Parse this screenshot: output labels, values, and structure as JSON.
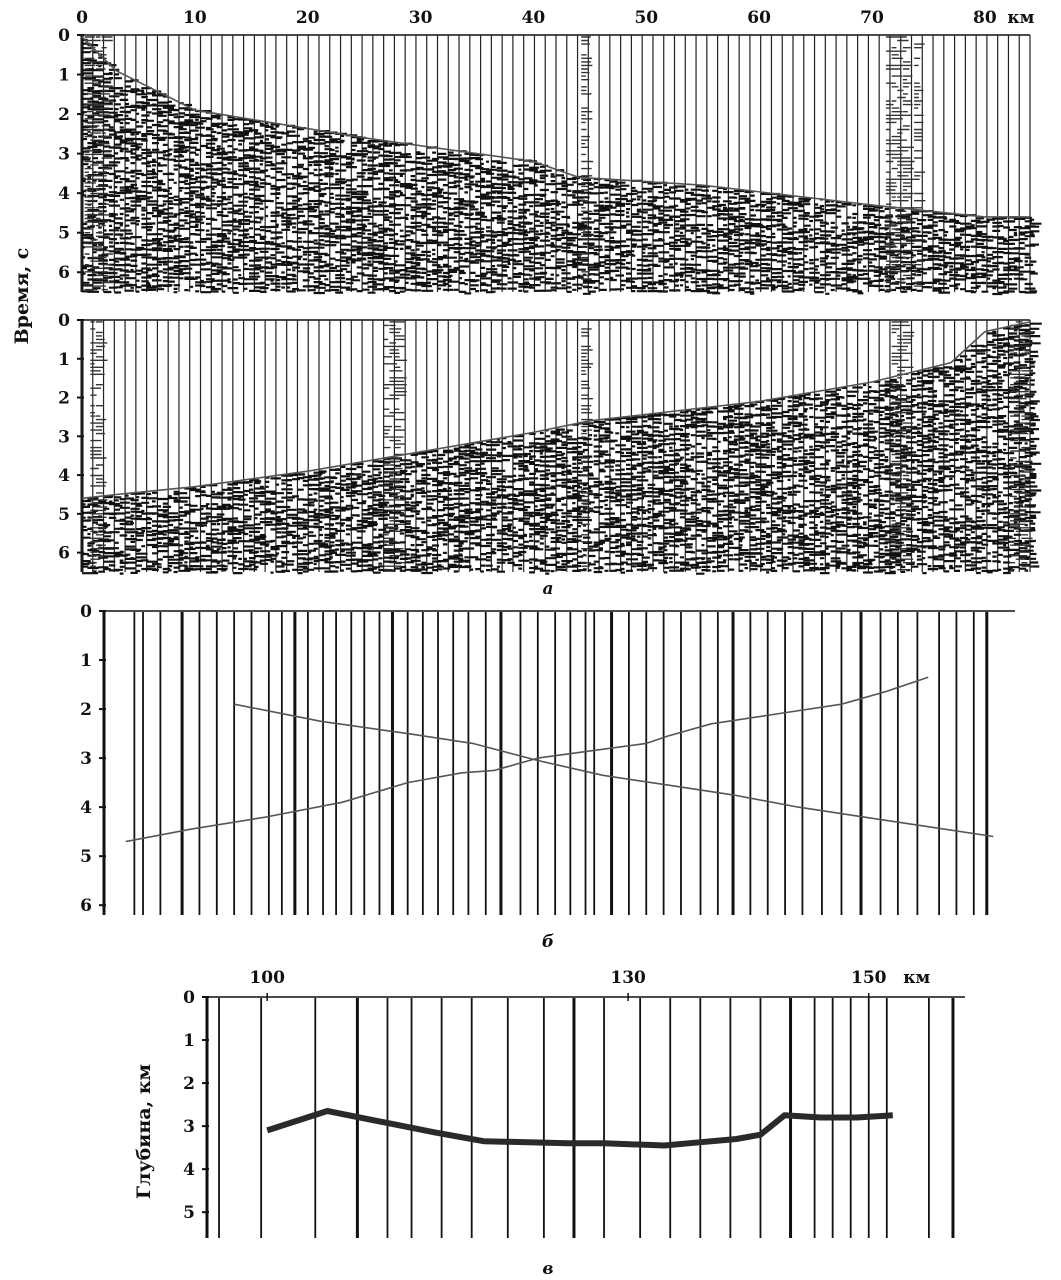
{
  "chart_data": [
    {
      "id": "a-top",
      "type": "seismic-record",
      "caption": "",
      "x_ticks": [
        "0",
        "10",
        "20",
        "30",
        "40",
        "50",
        "60",
        "70",
        "80"
      ],
      "x_unit": "км",
      "xlim": [
        0,
        84
      ],
      "y_ticks": [
        "0",
        "1",
        "2",
        "3",
        "4",
        "5",
        "6"
      ],
      "ylim": [
        0,
        6.5
      ],
      "y_reversed": true,
      "first_arrival": {
        "x": [
          0,
          3,
          10,
          25,
          40,
          44,
          55,
          70,
          80,
          84
        ],
        "y": [
          0.05,
          0.9,
          1.9,
          2.6,
          3.2,
          3.6,
          3.8,
          4.3,
          4.6,
          4.6
        ]
      },
      "noisy_traces": [
        0.5,
        1,
        1.5,
        2,
        44.5,
        71.5,
        72,
        72.5,
        73,
        74
      ],
      "color": "#111111"
    },
    {
      "id": "a-bottom",
      "type": "seismic-record",
      "caption": "а",
      "ylabel": "Время, с",
      "y_ticks": [
        "0",
        "1",
        "2",
        "3",
        "4",
        "5",
        "6"
      ],
      "xlim": [
        0,
        84
      ],
      "ylim": [
        0,
        6.5
      ],
      "y_reversed": true,
      "first_arrival": {
        "x": [
          0,
          3,
          10,
          20,
          30,
          40,
          45,
          60,
          70,
          77,
          80,
          84
        ],
        "y": [
          4.6,
          4.5,
          4.3,
          3.9,
          3.4,
          2.9,
          2.6,
          2.1,
          1.6,
          1.1,
          0.3,
          0.05
        ]
      },
      "noisy_traces": [
        1,
        1.5,
        27,
        27.5,
        28,
        44.5,
        72,
        72.5,
        73,
        82.5,
        83,
        83.5
      ],
      "color": "#111111"
    },
    {
      "id": "b",
      "type": "line",
      "caption": "б",
      "y_ticks": [
        "0",
        "1",
        "2",
        "3",
        "4",
        "5",
        "6"
      ],
      "ylim": [
        0,
        6.2
      ],
      "y_reversed": true,
      "xlim": [
        0,
        84
      ],
      "series": [
        {
          "x": [
            2,
            8,
            15,
            22,
            28,
            33,
            36,
            40,
            45,
            50,
            52,
            56,
            62,
            68,
            72,
            76
          ],
          "y": [
            4.7,
            4.45,
            4.2,
            3.9,
            3.5,
            3.3,
            3.25,
            3.0,
            2.85,
            2.7,
            2.55,
            2.3,
            2.1,
            1.9,
            1.65,
            1.35
          ]
        },
        {
          "x": [
            12,
            20,
            28,
            34,
            40,
            46,
            52,
            58,
            64,
            70,
            76,
            82
          ],
          "y": [
            1.9,
            2.25,
            2.5,
            2.7,
            3.05,
            3.35,
            3.55,
            3.75,
            4.0,
            4.2,
            4.4,
            4.6
          ]
        }
      ],
      "receiver_lines": [
        2.8,
        3.6,
        5.2,
        7.2,
        8.8,
        10.4,
        12,
        13.6,
        15.2,
        16.4,
        17.6,
        18.8,
        20.2,
        21.4,
        22.8,
        24,
        25.4,
        26.6,
        28,
        29.4,
        30.8,
        32.2,
        33.6,
        35.2,
        36.6,
        38.4,
        40,
        41.6,
        43,
        44.4,
        45.2,
        46.8,
        48.4,
        50,
        51.6,
        53.2,
        55,
        56.6,
        58,
        59.6,
        61.2,
        62.8,
        64.4,
        66.2,
        68,
        69.8,
        71.6,
        73.2,
        75,
        77,
        78.6,
        80.2,
        81.4
      ],
      "color": "#111111"
    },
    {
      "id": "v",
      "type": "line",
      "caption": "в",
      "ylabel": "Глубина, км",
      "x_ticks": [
        {
          "v": 100,
          "t": "100"
        },
        {
          "v": 130,
          "t": "130"
        },
        {
          "v": 150,
          "t": "150"
        }
      ],
      "x_unit": "км",
      "xlim": [
        95,
        158
      ],
      "y_ticks": [
        "0",
        "1",
        "2",
        "3",
        "4",
        "5"
      ],
      "ylim": [
        0,
        5.6
      ],
      "y_reversed": true,
      "series": [
        {
          "x": [
            100,
            105,
            114,
            118,
            125,
            128,
            133,
            135,
            139,
            141,
            143,
            146,
            149,
            152
          ],
          "y": [
            3.1,
            2.65,
            3.15,
            3.35,
            3.4,
            3.4,
            3.45,
            3.4,
            3.3,
            3.2,
            2.75,
            2.8,
            2.8,
            2.75
          ]
        }
      ],
      "receiver_lines": [
        96,
        99.5,
        104,
        107.5,
        110,
        112,
        114.5,
        117,
        120,
        123,
        125.5,
        128,
        131,
        133.5,
        136,
        138.5,
        141,
        143.5,
        145.5,
        147,
        148.5,
        150,
        151.5,
        155,
        157
      ],
      "color": "#111111"
    }
  ]
}
